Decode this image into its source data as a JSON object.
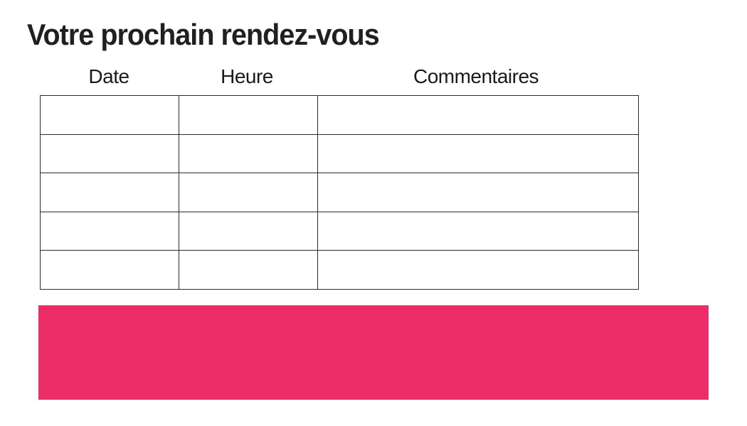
{
  "page": {
    "title": "Votre prochain rendez-vous"
  },
  "table": {
    "columns": [
      {
        "label": "Date"
      },
      {
        "label": "Heure"
      },
      {
        "label": "Commentaires"
      }
    ],
    "rows": [
      [
        "",
        "",
        ""
      ],
      [
        "",
        "",
        ""
      ],
      [
        "",
        "",
        ""
      ],
      [
        "",
        "",
        ""
      ],
      [
        "",
        "",
        ""
      ]
    ]
  },
  "banner": {
    "text": "",
    "color": "#ED2D67"
  },
  "colors": {
    "title_text": "#231F20",
    "header_text": "#1A1A1A",
    "table_border": "#2B2B2B",
    "background": "#FFFFFF"
  }
}
